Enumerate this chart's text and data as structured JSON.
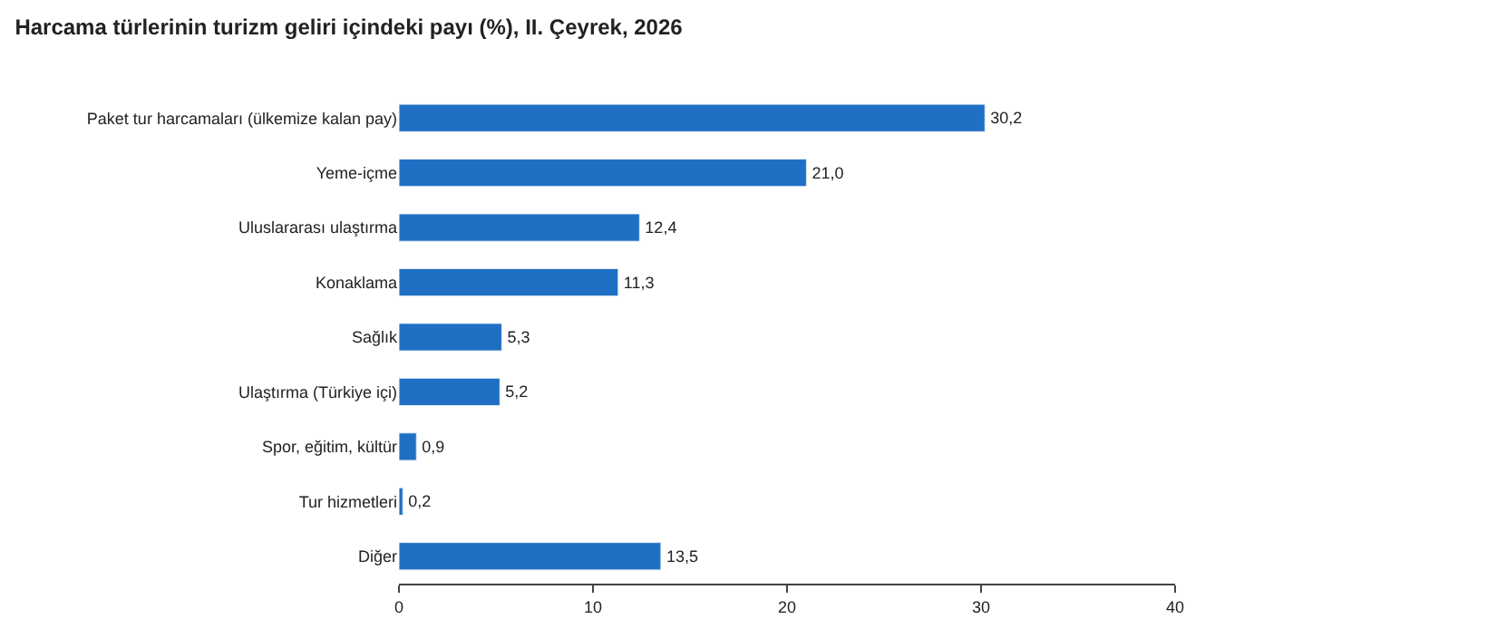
{
  "chart_data": {
    "type": "bar",
    "orientation": "horizontal",
    "title": "Harcama türlerinin turizm geliri içindeki payı (%), II. Çeyrek, 2026",
    "categories": [
      "Paket tur harcamaları (ülkemize kalan pay)",
      "Yeme-içme",
      "Uluslararası ulaştırma",
      "Konaklama",
      "Sağlık",
      "Ulaştırma (Türkiye içi)",
      "Spor, eğitim, kültür",
      "Tur hizmetleri",
      "Diğer"
    ],
    "values": [
      30.2,
      21.0,
      12.4,
      11.3,
      5.3,
      5.2,
      0.9,
      0.2,
      13.5
    ],
    "value_labels": [
      "30,2",
      "21,0",
      "12,4",
      "11,3",
      "5,3",
      "5,2",
      "0,9",
      "0,2",
      "13,5"
    ],
    "color": "#1f6fc4",
    "xlim": [
      0,
      40
    ],
    "xticks": [
      0,
      10,
      20,
      30,
      40
    ]
  }
}
